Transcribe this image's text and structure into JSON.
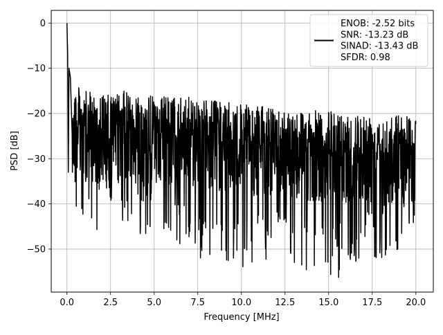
{
  "chart_data": {
    "type": "line",
    "title": "",
    "xlabel": "Frequency [MHz]",
    "ylabel": "PSD [dB]",
    "xlim": [
      -0.9,
      21.0
    ],
    "ylim": [
      -59.5,
      2.8
    ],
    "x_ticks": [
      0.0,
      2.5,
      5.0,
      7.5,
      10.0,
      12.5,
      15.0,
      17.5,
      20.0
    ],
    "x_tick_labels": [
      "0.0",
      "2.5",
      "5.0",
      "7.5",
      "10.0",
      "12.5",
      "15.0",
      "17.5",
      "20.0"
    ],
    "y_ticks": [
      0,
      -10,
      -20,
      -30,
      -40,
      -50
    ],
    "y_tick_labels": [
      "0",
      "−10",
      "−20",
      "−30",
      "−40",
      "−50"
    ],
    "grid": true,
    "legend_position": "upper right",
    "series_color": "#000000",
    "series": [
      {
        "name": "ENOB: -2.52 bits\nSNR: -13.23 dB\nSINAD: -13.43 dB\nSFDR: 0.98",
        "legend_lines": [
          "ENOB: -2.52 bits",
          "SNR: -13.23 dB",
          "SINAD: -13.43 dB",
          "SFDR: 0.98"
        ],
        "peak_points": [
          [
            0.0,
            0.0
          ],
          [
            0.04,
            -6.5
          ],
          [
            0.08,
            -33.0
          ],
          [
            0.12,
            -10.0
          ],
          [
            0.2,
            -12.0
          ]
        ],
        "upper_envelope": [
          [
            0.3,
            -13.0
          ],
          [
            1.0,
            -15.0
          ],
          [
            2.5,
            -16.0
          ],
          [
            3.2,
            -15.0
          ],
          [
            5.0,
            -16.0
          ],
          [
            7.5,
            -16.5
          ],
          [
            10.0,
            -18.0
          ],
          [
            12.5,
            -19.0
          ],
          [
            15.0,
            -19.5
          ],
          [
            17.5,
            -20.0
          ],
          [
            20.0,
            -20.0
          ]
        ],
        "lower_envelope": [
          [
            0.3,
            -44.0
          ],
          [
            0.8,
            -48.5
          ],
          [
            2.5,
            -44.0
          ],
          [
            5.0,
            -48.0
          ],
          [
            6.5,
            -50.0
          ],
          [
            8.5,
            -55.0
          ],
          [
            10.0,
            -54.0
          ],
          [
            12.5,
            -53.0
          ],
          [
            14.0,
            -56.0
          ],
          [
            15.2,
            -57.0
          ],
          [
            16.0,
            -55.5
          ],
          [
            17.5,
            -53.0
          ],
          [
            20.0,
            -48.0
          ]
        ],
        "x_end": 20.0
      }
    ]
  }
}
